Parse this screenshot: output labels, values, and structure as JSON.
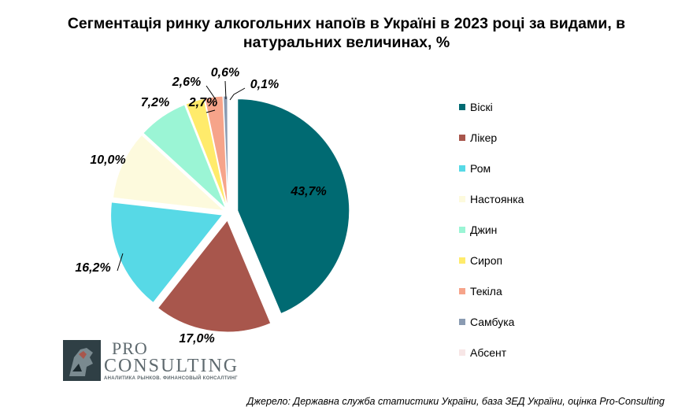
{
  "chart_data": {
    "type": "pie",
    "title": "Сегментація ринку алкогольних напоїв в Україні в 2023 році за видами, в натуральних величинах, %",
    "slices": [
      {
        "name": "Віскі",
        "value": 43.7,
        "label": "43,7%",
        "color": "#006a72"
      },
      {
        "name": "Лікер",
        "value": 17.0,
        "label": "17,0%",
        "color": "#a8564c"
      },
      {
        "name": "Ром",
        "value": 16.2,
        "label": "16,2%",
        "color": "#57d9e6"
      },
      {
        "name": "Настоянка",
        "value": 10.0,
        "label": "10,0%",
        "color": "#fdfadd"
      },
      {
        "name": "Джин",
        "value": 7.2,
        "label": "7,2%",
        "color": "#9bf5d5"
      },
      {
        "name": "Сироп",
        "value": 2.7,
        "label": "2,7%",
        "color": "#ffeb6b"
      },
      {
        "name": "Текіла",
        "value": 2.6,
        "label": "2,6%",
        "color": "#f6a48a"
      },
      {
        "name": "Самбука",
        "value": 0.6,
        "label": "0,6%",
        "color": "#8a9bb2"
      },
      {
        "name": "Абсент",
        "value": 0.1,
        "label": "0,1%",
        "color": "#f7e6e6"
      }
    ],
    "legend_position": "right"
  },
  "logo": {
    "line1": "PRO",
    "line2": "CONSULTING",
    "tagline": "АНАЛИТИКА РЫНКОВ. ФИНАНСОВЫЙ КОНСАЛТИНГ"
  },
  "source": "Джерело: Державна служба статистики України, база ЗЕД України, оцінка Pro-Consulting"
}
